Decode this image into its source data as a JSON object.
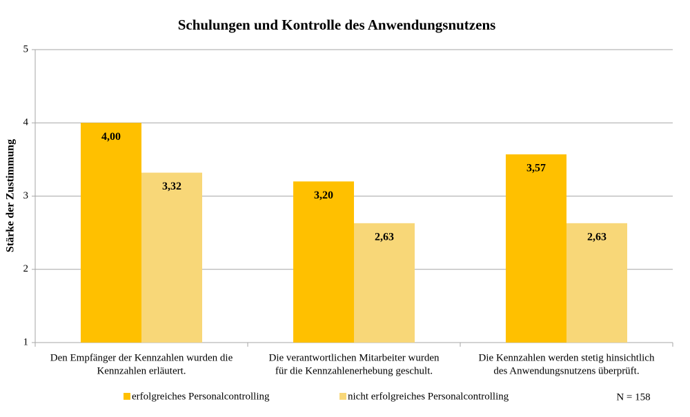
{
  "chart_data": {
    "type": "bar",
    "title": "Schulungen und Kontrolle des Anwendungsnutzens",
    "y_label": "Stärke der Zustimmung",
    "annotation": "N = 158",
    "categories": [
      [
        "Den Empfänger der Kennzahlen wurden die",
        "Kennzahlen erläutert."
      ],
      [
        "Die verantwortlichen Mitarbeiter wurden",
        "für die Kennzahlenerhebung geschult."
      ],
      [
        "Die Kennzahlen werden stetig hinsichtlich",
        "des Anwendungsnutzens überprüft."
      ]
    ],
    "series": [
      {
        "name": "erfolgreiches Personalcontrolling",
        "color": "#ffc000",
        "values": [
          4.0,
          3.2,
          3.57
        ],
        "value_labels": [
          "4,00",
          "3,20",
          "3,57"
        ]
      },
      {
        "name": "nicht erfolgreiches Personalcontrolling",
        "color": "#f8d778",
        "values": [
          3.32,
          2.63,
          2.63
        ],
        "value_labels": [
          "3,32",
          "2,63",
          "2,63"
        ]
      }
    ],
    "ylim": [
      1,
      5
    ],
    "yticks": [
      1,
      2,
      3,
      4,
      5
    ],
    "grid": true
  }
}
